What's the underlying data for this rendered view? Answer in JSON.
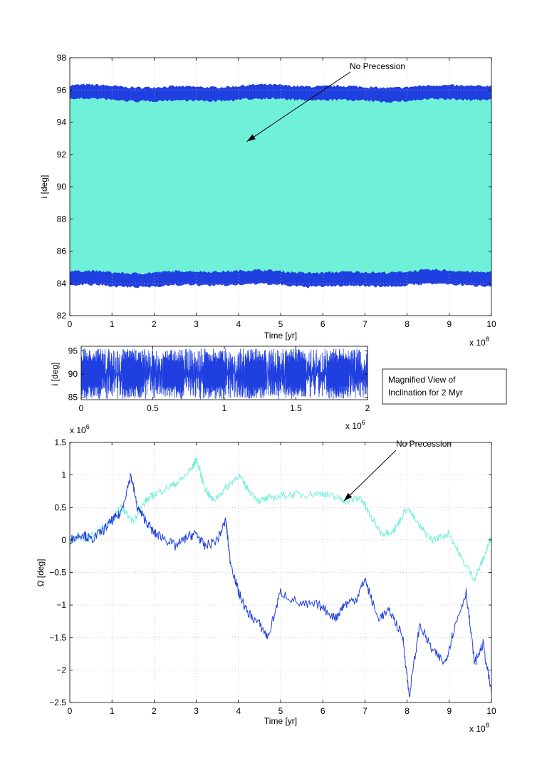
{
  "colors": {
    "primary_series": "#1f3fe0",
    "secondary_series": "#6ff0d8",
    "axes": "#000000",
    "grid": "#b8b8b8"
  },
  "chart_data": [
    {
      "type": "area",
      "xlabel": "Time [yr]",
      "ylabel": "i [deg]",
      "x_exponent_label": "x 10",
      "x_exponent": "8",
      "xlim": [
        0,
        10
      ],
      "ylim": [
        82,
        98
      ],
      "xticks": [
        "0",
        "1",
        "2",
        "3",
        "4",
        "5",
        "6",
        "7",
        "8",
        "9",
        "10"
      ],
      "yticks": [
        "82",
        "84",
        "86",
        "88",
        "90",
        "92",
        "94",
        "96",
        "98"
      ],
      "grid": true,
      "annotation": {
        "text": "No Precession",
        "arrow_to": [
          4.2,
          92.8
        ]
      },
      "series": [
        {
          "role": "band",
          "values": {
            "lower": 84.6,
            "upper": 95.5
          }
        },
        {
          "role": "envelope-upper",
          "values": {
            "center": 95.8,
            "spread": 0.35
          }
        },
        {
          "role": "envelope-lower",
          "values": {
            "center": 84.3,
            "spread": 0.35
          }
        }
      ]
    },
    {
      "type": "line",
      "xlabel": "",
      "ylabel": "i [deg]",
      "x_exponent_label": "x 10",
      "x_exponent": "6",
      "xlim": [
        0,
        2
      ],
      "ylim": [
        84.5,
        96
      ],
      "xticks": [
        "0",
        "0.5",
        "1",
        "1.5",
        "2"
      ],
      "yticks": [
        "85",
        "90",
        "95"
      ],
      "grid": false,
      "note": {
        "line1": "Magnified View of",
        "line2": "Inclination for 2 Myr"
      },
      "oscillation": {
        "min": 84.6,
        "max": 95.5,
        "cycles": 14
      }
    },
    {
      "type": "line",
      "xlabel": "Time [yr]",
      "ylabel": "Ω [deg]",
      "x_exponent_label": "x 10",
      "x_exponent": "8",
      "y_exponent_label": "x 10",
      "y_exponent": "6",
      "xlim": [
        0,
        10
      ],
      "ylim": [
        -2.5,
        1.5
      ],
      "xticks": [
        "0",
        "1",
        "2",
        "3",
        "4",
        "5",
        "6",
        "7",
        "8",
        "9",
        "10"
      ],
      "yticks": [
        "−2.5",
        "−2",
        "−1.5",
        "−1",
        "−0.5",
        "0",
        "0.5",
        "1",
        "1.5"
      ],
      "grid": true,
      "annotation": {
        "text": "No Precession",
        "arrow_to": [
          6.5,
          0.6
        ]
      },
      "series": [
        {
          "role": "primary",
          "x": [
            0,
            0.3,
            0.5,
            0.8,
            1.0,
            1.2,
            1.45,
            1.6,
            1.8,
            2.0,
            2.2,
            2.5,
            2.8,
            3.0,
            3.2,
            3.5,
            3.7,
            3.8,
            4.0,
            4.2,
            4.5,
            4.7,
            5.0,
            5.5,
            5.9,
            6.3,
            6.5,
            6.8,
            7.0,
            7.3,
            7.6,
            7.9,
            8.05,
            8.3,
            8.6,
            8.9,
            9.1,
            9.4,
            9.6,
            9.8,
            10.0
          ],
          "y": [
            0.0,
            0.1,
            0.0,
            0.15,
            0.3,
            0.4,
            1.0,
            0.5,
            0.3,
            0.1,
            0.05,
            -0.1,
            0.05,
            0.1,
            -0.1,
            0.0,
            0.3,
            -0.3,
            -0.8,
            -1.1,
            -1.3,
            -1.5,
            -0.8,
            -1.0,
            -1.0,
            -1.2,
            -1.0,
            -0.9,
            -0.6,
            -1.2,
            -1.1,
            -1.5,
            -2.4,
            -1.3,
            -1.7,
            -1.9,
            -1.4,
            -0.8,
            -1.9,
            -1.6,
            -2.35
          ]
        },
        {
          "role": "secondary",
          "x": [
            0,
            0.5,
            1.0,
            1.2,
            1.5,
            1.8,
            2.0,
            2.3,
            2.6,
            2.9,
            3.0,
            3.2,
            3.4,
            3.7,
            4.0,
            4.2,
            4.5,
            4.8,
            5.2,
            5.6,
            6.0,
            6.3,
            6.6,
            6.9,
            7.1,
            7.4,
            7.7,
            8.0,
            8.3,
            8.6,
            9.0,
            9.3,
            9.6,
            9.8,
            10.0
          ],
          "y": [
            0.0,
            0.05,
            0.3,
            0.5,
            0.3,
            0.6,
            0.7,
            0.8,
            0.9,
            1.1,
            1.25,
            0.8,
            0.6,
            0.8,
            1.0,
            0.8,
            0.6,
            0.65,
            0.7,
            0.7,
            0.72,
            0.65,
            0.6,
            0.65,
            0.4,
            0.1,
            0.15,
            0.5,
            0.2,
            0.0,
            0.1,
            -0.3,
            -0.6,
            -0.3,
            0.05
          ]
        }
      ]
    }
  ]
}
